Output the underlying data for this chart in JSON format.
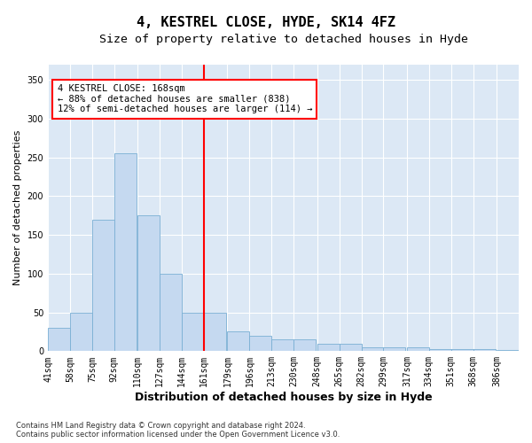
{
  "title": "4, KESTREL CLOSE, HYDE, SK14 4FZ",
  "subtitle": "Size of property relative to detached houses in Hyde",
  "xlabel": "Distribution of detached houses by size in Hyde",
  "ylabel": "Number of detached properties",
  "bar_color": "#c5d9f0",
  "bar_edge_color": "#7aafd4",
  "background_color": "#dce8f5",
  "vline_x": 161,
  "vline_color": "red",
  "annotation_text": "4 KESTREL CLOSE: 168sqm\n← 88% of detached houses are smaller (838)\n12% of semi-detached houses are larger (114) →",
  "bins": [
    41,
    58,
    75,
    92,
    110,
    127,
    144,
    161,
    179,
    196,
    213,
    230,
    248,
    265,
    282,
    299,
    317,
    334,
    351,
    368,
    386
  ],
  "bin_labels": [
    "41sqm",
    "58sqm",
    "75sqm",
    "92sqm",
    "110sqm",
    "127sqm",
    "144sqm",
    "161sqm",
    "179sqm",
    "196sqm",
    "213sqm",
    "230sqm",
    "248sqm",
    "265sqm",
    "282sqm",
    "299sqm",
    "317sqm",
    "334sqm",
    "351sqm",
    "368sqm",
    "386sqm"
  ],
  "values": [
    30,
    50,
    170,
    255,
    175,
    100,
    50,
    50,
    25,
    20,
    15,
    15,
    10,
    10,
    5,
    5,
    5,
    3,
    3,
    3,
    2
  ],
  "ylim": [
    0,
    370
  ],
  "yticks": [
    0,
    50,
    100,
    150,
    200,
    250,
    300,
    350
  ],
  "footnote": "Contains HM Land Registry data © Crown copyright and database right 2024.\nContains public sector information licensed under the Open Government Licence v3.0.",
  "grid_color": "#ffffff",
  "title_fontsize": 11,
  "subtitle_fontsize": 9.5,
  "xlabel_fontsize": 9,
  "ylabel_fontsize": 8,
  "tick_fontsize": 7,
  "annotation_fontsize": 7.5,
  "footnote_fontsize": 6
}
